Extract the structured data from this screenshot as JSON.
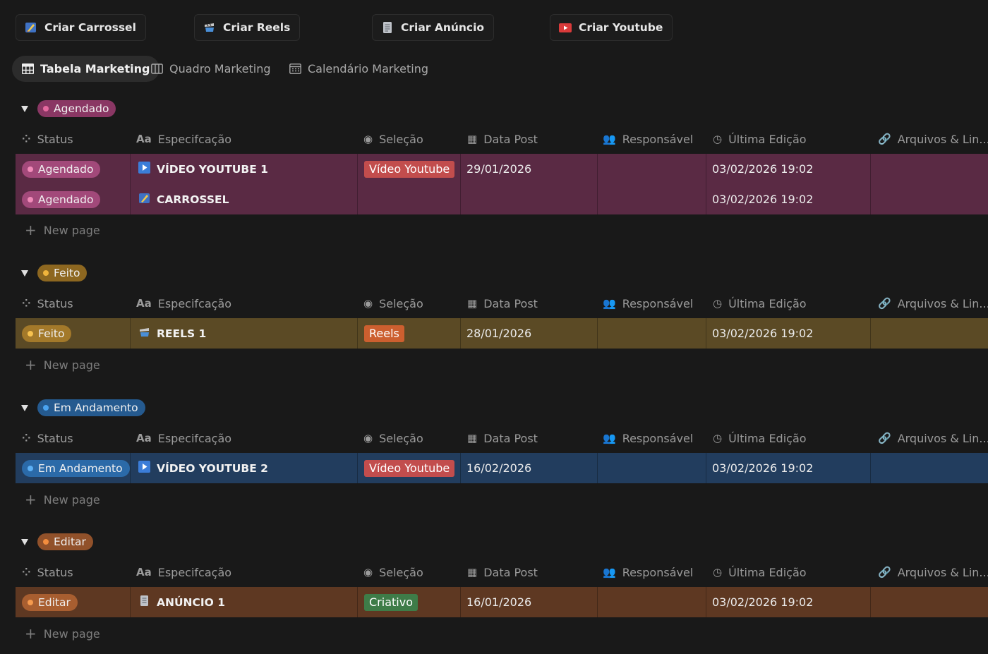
{
  "buttons": [
    {
      "label": "Criar Carrossel",
      "icon": "carousel-icon"
    },
    {
      "label": "Criar Reels",
      "icon": "reels-icon"
    },
    {
      "label": "Criar Anúncio",
      "icon": "ad-icon"
    },
    {
      "label": "Criar Youtube",
      "icon": "youtube-icon"
    }
  ],
  "tabs": [
    {
      "label": "Tabela Marketing",
      "icon": "table-icon",
      "active": true
    },
    {
      "label": "Quadro Marketing",
      "icon": "board-icon",
      "active": false
    },
    {
      "label": "Calendário Marketing",
      "icon": "calendar-icon",
      "active": false
    }
  ],
  "columns": {
    "status": "Status",
    "spec": "Especifcação",
    "selecao": "Seleção",
    "data_post": "Data Post",
    "responsavel": "Responsável",
    "ultima_edicao": "Última Edição",
    "arquivos": "Arquivos & Lin..."
  },
  "new_page_label": "New page",
  "colors": {
    "agendado_row": "#5a2a44",
    "feito_row": "#5b4a25",
    "andamento_row": "#223d5e",
    "editar_row": "#5e3822",
    "agendado_pill": "#8a3764",
    "feito_pill": "#8d6720",
    "andamento_pill": "#255a8f",
    "editar_pill": "#91512a",
    "tag_youtube": "#c24d4d",
    "tag_reels": "#cc5f2f",
    "tag_criativo": "#3e7c48"
  },
  "groups": [
    {
      "name": "Agendado",
      "rows": [
        {
          "status": "Agendado",
          "title": "VÍDEO YOUTUBE 1",
          "icon": "youtube-play-icon",
          "selecao": "Vídeo Youtube",
          "data_post": "29/01/2026",
          "ultima_edicao": "03/02/2026 19:02"
        },
        {
          "status": "Agendado",
          "title": "CARROSSEL",
          "icon": "carousel-icon",
          "selecao": "",
          "data_post": "",
          "ultima_edicao": "03/02/2026 19:02"
        }
      ]
    },
    {
      "name": "Feito",
      "rows": [
        {
          "status": "Feito",
          "title": "REELS 1",
          "icon": "reels-icon",
          "selecao": "Reels",
          "data_post": "28/01/2026",
          "ultima_edicao": "03/02/2026 19:02"
        }
      ]
    },
    {
      "name": "Em Andamento",
      "rows": [
        {
          "status": "Em Andamento",
          "title": "VÍDEO YOUTUBE 2",
          "icon": "youtube-play-icon",
          "selecao": "Vídeo Youtube",
          "data_post": "16/02/2026",
          "ultima_edicao": "03/02/2026 19:02"
        }
      ]
    },
    {
      "name": "Editar",
      "rows": [
        {
          "status": "Editar",
          "title": "ANÚNCIO 1",
          "icon": "ad-icon",
          "selecao": "Criativo",
          "data_post": "16/01/2026",
          "ultima_edicao": "03/02/2026 19:02"
        }
      ]
    }
  ]
}
